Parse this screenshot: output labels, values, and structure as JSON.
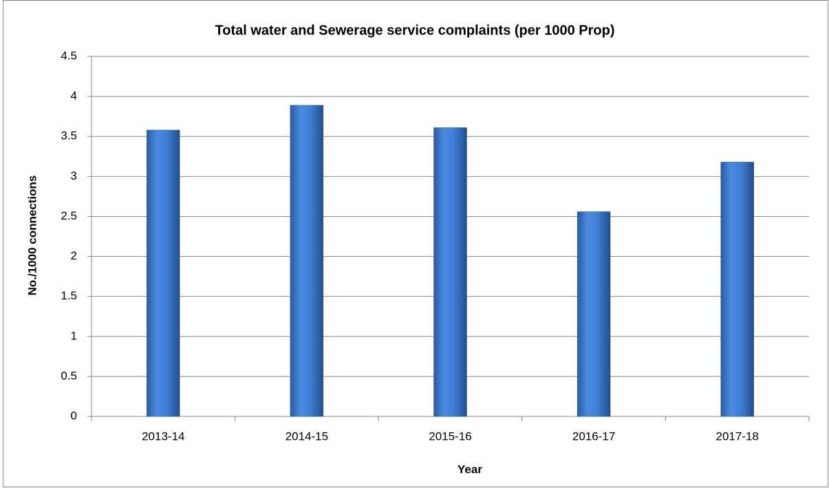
{
  "chart_data": {
    "type": "bar",
    "title": "Total water and Sewerage service complaints (per 1000 Prop)",
    "x_label": "Year",
    "y_label": "No./1000 connections",
    "categories": [
      "2013-14",
      "2014-15",
      "2015-16",
      "2016-17",
      "2017-18"
    ],
    "values": [
      3.58,
      3.89,
      3.61,
      2.56,
      3.18
    ],
    "color": "#3f7fd6",
    "ylim": [
      0,
      4.5
    ],
    "yticks": [
      0,
      0.5,
      1,
      1.5,
      2,
      2.5,
      3,
      3.5,
      4,
      4.5
    ],
    "grid": true
  }
}
